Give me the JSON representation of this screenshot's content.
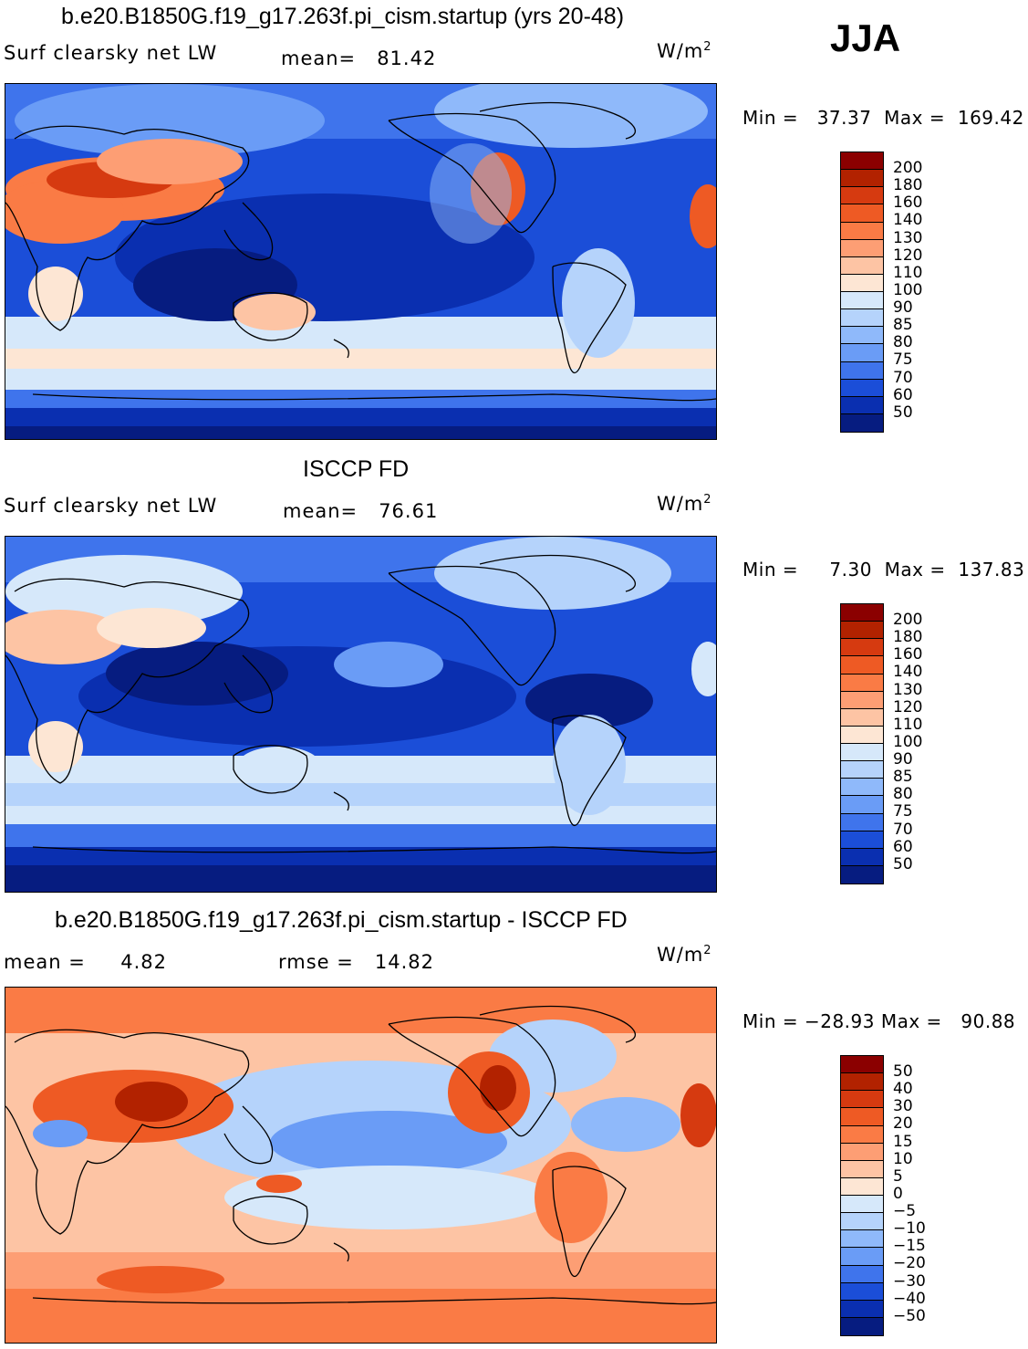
{
  "season": "JJA",
  "panels": [
    {
      "title": "b.e20.B1850G.f19_g17.263f.pi_cism.startup (yrs 20-48)",
      "variable": "Surf  clearsky  net  LW",
      "stat1_label": "mean=",
      "stat1_value": "81.42",
      "stat2_label": "",
      "stat2_value": "",
      "units_base": "W/m",
      "units_exp": "2",
      "min_label": "Min  =",
      "min_value": "37.37",
      "max_label": "Max  =",
      "max_value": "169.42",
      "colorbar_labels": [
        "200",
        "180",
        "160",
        "140",
        "130",
        "120",
        "110",
        "100",
        "90",
        "85",
        "80",
        "75",
        "70",
        "60",
        "50"
      ],
      "colorbar_colors": [
        "#8b0000",
        "#b22200",
        "#d63a10",
        "#ee5a24",
        "#fa7b45",
        "#fd9e74",
        "#fdc4a4",
        "#fde6d4",
        "#d6e8fa",
        "#b5d3fb",
        "#8fb9fa",
        "#6a9cf6",
        "#3f74ec",
        "#1b4ed8",
        "#0a2fb0",
        "#061c80"
      ],
      "map_style": "model"
    },
    {
      "title": "ISCCP FD",
      "variable": "Surf  clearsky  net  LW",
      "stat1_label": "mean=",
      "stat1_value": "76.61",
      "stat2_label": "",
      "stat2_value": "",
      "units_base": "W/m",
      "units_exp": "2",
      "min_label": "Min  =",
      "min_value": "7.30",
      "max_label": "Max  =",
      "max_value": "137.83",
      "colorbar_labels": [
        "200",
        "180",
        "160",
        "140",
        "130",
        "120",
        "110",
        "100",
        "90",
        "85",
        "80",
        "75",
        "70",
        "60",
        "50"
      ],
      "colorbar_colors": [
        "#8b0000",
        "#b22200",
        "#d63a10",
        "#ee5a24",
        "#fa7b45",
        "#fd9e74",
        "#fdc4a4",
        "#fde6d4",
        "#d6e8fa",
        "#b5d3fb",
        "#8fb9fa",
        "#6a9cf6",
        "#3f74ec",
        "#1b4ed8",
        "#0a2fb0",
        "#061c80"
      ],
      "map_style": "obs"
    },
    {
      "title": "b.e20.B1850G.f19_g17.263f.pi_cism.startup - ISCCP FD",
      "variable": "",
      "stat1_label": "mean  =",
      "stat1_value": "4.82",
      "stat2_label": "rmse  =",
      "stat2_value": "14.82",
      "units_base": "W/m",
      "units_exp": "2",
      "min_label": "Min  =",
      "min_value": "−28.93",
      "max_label": "Max  =",
      "max_value": "90.88",
      "colorbar_labels": [
        "50",
        "40",
        "30",
        "20",
        "15",
        "10",
        "5",
        "0",
        "−5",
        "−10",
        "−15",
        "−20",
        "−30",
        "−40",
        "−50"
      ],
      "colorbar_colors": [
        "#8b0000",
        "#b22200",
        "#d63a10",
        "#ee5a24",
        "#fa7b45",
        "#fd9e74",
        "#fdc4a4",
        "#fde6d4",
        "#d6e8fa",
        "#b5d3fb",
        "#8fb9fa",
        "#6a9cf6",
        "#3f74ec",
        "#1b4ed8",
        "#0a2fb0",
        "#061c80"
      ],
      "map_style": "diff"
    }
  ]
}
